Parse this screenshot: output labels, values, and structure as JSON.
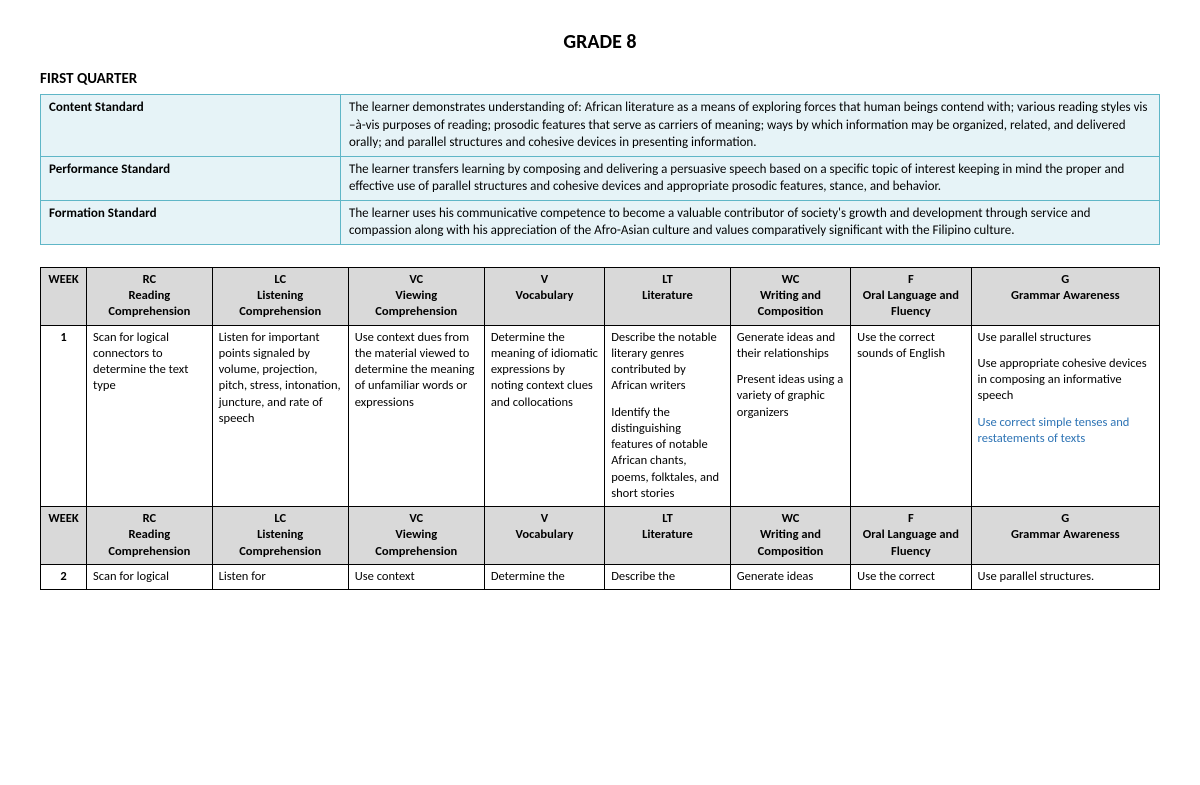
{
  "title": "GRADE 8",
  "section": "FIRST QUARTER",
  "standards": [
    {
      "label": "Content Standard",
      "text": "The learner demonstrates understanding of: African literature as a means of exploring forces that human beings contend with; various reading styles vis –à-vis purposes of reading; prosodic features that serve as carriers of meaning; ways by which information may be organized, related, and delivered orally; and parallel structures and cohesive devices in presenting information."
    },
    {
      "label": "Performance Standard",
      "text": "The learner transfers learning by composing and delivering a persuasive speech based on a specific topic of interest keeping in mind the proper and effective use of parallel structures and cohesive devices and appropriate prosodic features, stance, and behavior."
    },
    {
      "label": "Formation Standard",
      "text": "The learner uses his communicative competence to become a valuable contributor of society's growth and development through service and compassion along with his appreciation of the Afro-Asian culture and values comparatively significant with the Filipino culture."
    }
  ],
  "columns": [
    {
      "code": "WEEK",
      "title": ""
    },
    {
      "code": "RC",
      "title": "Reading Comprehension"
    },
    {
      "code": "LC",
      "title": "Listening Comprehension"
    },
    {
      "code": "VC",
      "title": "Viewing Comprehension"
    },
    {
      "code": "V",
      "title": "Vocabulary"
    },
    {
      "code": "LT",
      "title": "Literature"
    },
    {
      "code": "WC",
      "title": "Writing and Composition"
    },
    {
      "code": "F",
      "title": "Oral Language and Fluency"
    },
    {
      "code": "G",
      "title": "Grammar Awareness"
    }
  ],
  "colors": {
    "standards_bg": "#e6f3f7",
    "standards_border": "#5fb6c7",
    "header_bg": "#d9d9d9",
    "grid_border": "#000000",
    "accent_text": "#2e74b5",
    "page_bg": "#ffffff"
  },
  "rows": [
    {
      "week": "1",
      "rc": [
        "Scan for logical connectors to determine the text type"
      ],
      "lc": [
        "Listen for important points signaled by volume, projection, pitch, stress, intonation, juncture, and rate of speech"
      ],
      "vc": [
        "Use context dues from the material viewed to determine the meaning of unfamiliar words or expressions"
      ],
      "v": [
        "Determine the meaning of idiomatic expressions by noting context clues and collocations"
      ],
      "lt": [
        "Describe the notable literary genres contributed by African writers",
        "Identify the distinguishing features of notable African chants, poems, folktales, and short stories"
      ],
      "wc": [
        "Generate ideas and their relationships",
        "Present ideas using a variety of graphic organizers"
      ],
      "f": [
        "Use the correct sounds of English"
      ],
      "g": [
        "Use parallel structures",
        "Use appropriate cohesive devices in composing an informative speech"
      ],
      "g_accent": [
        "Use correct simple tenses and restatements of texts"
      ]
    },
    {
      "week": "2",
      "rc": [
        "Scan for logical"
      ],
      "lc": [
        "Listen for"
      ],
      "vc": [
        "Use context"
      ],
      "v": [
        "Determine the"
      ],
      "lt": [
        "Describe the"
      ],
      "wc": [
        "Generate ideas"
      ],
      "f": [
        "Use the correct"
      ],
      "g": [
        "Use parallel structures."
      ],
      "g_accent": []
    }
  ]
}
